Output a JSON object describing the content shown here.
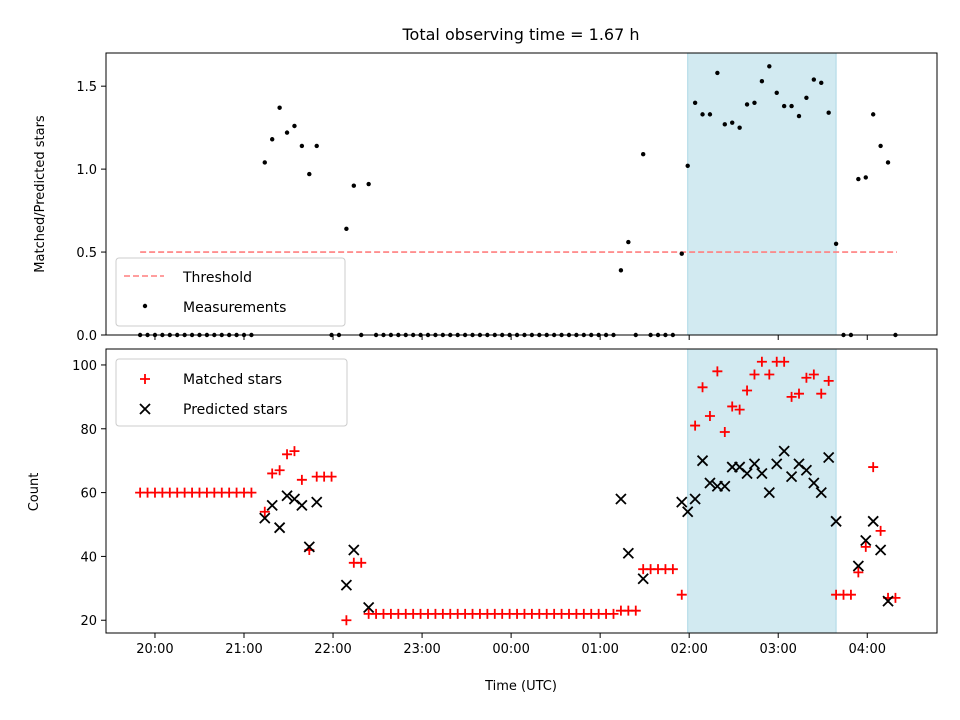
{
  "figure": {
    "title": "Total observing time = 1.67 h"
  },
  "chart_data": [
    {
      "type": "scatter",
      "panel": "top",
      "ylabel": "Matched/Predicted stars",
      "xlabel": "",
      "x_unit": "UTC time",
      "ylim": [
        0,
        1.7
      ],
      "yticks": [
        0.0,
        0.5,
        1.0,
        1.5
      ],
      "ytick_labels": [
        "0.0",
        "0.5",
        "1.0",
        "1.5"
      ],
      "xticks": [
        "20:00",
        "21:00",
        "22:00",
        "23:00",
        "00:00",
        "01:00",
        "02:00",
        "03:00",
        "04:00"
      ],
      "shaded_interval": [
        "01:59",
        "03:39"
      ],
      "shade_color": "#add8e6",
      "threshold": {
        "name": "Threshold",
        "y": 0.5,
        "x_start": "19:50",
        "x_end": "04:20",
        "color": "#ff7f7f",
        "style": "dashed"
      },
      "series": [
        {
          "name": "Measurements",
          "marker": "dot",
          "color": "#000000",
          "points": [
            [
              "19:50",
              0
            ],
            [
              "19:55",
              0
            ],
            [
              "20:00",
              0
            ],
            [
              "20:05",
              0
            ],
            [
              "20:10",
              0
            ],
            [
              "20:15",
              0
            ],
            [
              "20:20",
              0
            ],
            [
              "20:25",
              0
            ],
            [
              "20:30",
              0
            ],
            [
              "20:35",
              0
            ],
            [
              "20:40",
              0
            ],
            [
              "20:45",
              0
            ],
            [
              "20:50",
              0
            ],
            [
              "20:55",
              0
            ],
            [
              "21:00",
              0
            ],
            [
              "21:05",
              0
            ],
            [
              "21:14",
              1.04
            ],
            [
              "21:19",
              1.18
            ],
            [
              "21:24",
              1.37
            ],
            [
              "21:29",
              1.22
            ],
            [
              "21:34",
              1.26
            ],
            [
              "21:39",
              1.14
            ],
            [
              "21:44",
              0.97
            ],
            [
              "21:49",
              1.14
            ],
            [
              "21:59",
              0
            ],
            [
              "22:04",
              0
            ],
            [
              "22:09",
              0.64
            ],
            [
              "22:14",
              0.9
            ],
            [
              "22:19",
              0
            ],
            [
              "22:24",
              0.91
            ],
            [
              "22:29",
              0
            ],
            [
              "22:34",
              0
            ],
            [
              "22:39",
              0
            ],
            [
              "22:44",
              0
            ],
            [
              "22:49",
              0
            ],
            [
              "22:54",
              0
            ],
            [
              "22:59",
              0
            ],
            [
              "23:04",
              0
            ],
            [
              "23:09",
              0
            ],
            [
              "23:14",
              0
            ],
            [
              "23:19",
              0
            ],
            [
              "23:24",
              0
            ],
            [
              "23:29",
              0
            ],
            [
              "23:34",
              0
            ],
            [
              "23:39",
              0
            ],
            [
              "23:44",
              0
            ],
            [
              "23:49",
              0
            ],
            [
              "23:54",
              0
            ],
            [
              "23:59",
              0
            ],
            [
              "00:04",
              0
            ],
            [
              "00:09",
              0
            ],
            [
              "00:14",
              0
            ],
            [
              "00:19",
              0
            ],
            [
              "00:24",
              0
            ],
            [
              "00:29",
              0
            ],
            [
              "00:34",
              0
            ],
            [
              "00:39",
              0
            ],
            [
              "00:44",
              0
            ],
            [
              "00:49",
              0
            ],
            [
              "00:54",
              0
            ],
            [
              "00:59",
              0
            ],
            [
              "01:04",
              0
            ],
            [
              "01:09",
              0
            ],
            [
              "01:14",
              0.39
            ],
            [
              "01:19",
              0.56
            ],
            [
              "01:24",
              0
            ],
            [
              "01:29",
              1.09
            ],
            [
              "01:34",
              0
            ],
            [
              "01:39",
              0
            ],
            [
              "01:44",
              0
            ],
            [
              "01:49",
              0
            ],
            [
              "01:55",
              0.49
            ],
            [
              "01:59",
              1.02
            ],
            [
              "02:04",
              1.4
            ],
            [
              "02:09",
              1.33
            ],
            [
              "02:14",
              1.33
            ],
            [
              "02:19",
              1.58
            ],
            [
              "02:24",
              1.27
            ],
            [
              "02:29",
              1.28
            ],
            [
              "02:34",
              1.25
            ],
            [
              "02:39",
              1.39
            ],
            [
              "02:44",
              1.4
            ],
            [
              "02:49",
              1.53
            ],
            [
              "02:54",
              1.62
            ],
            [
              "02:59",
              1.46
            ],
            [
              "03:04",
              1.38
            ],
            [
              "03:09",
              1.38
            ],
            [
              "03:14",
              1.32
            ],
            [
              "03:19",
              1.43
            ],
            [
              "03:24",
              1.54
            ],
            [
              "03:29",
              1.52
            ],
            [
              "03:34",
              1.34
            ],
            [
              "03:39",
              0.55
            ],
            [
              "03:44",
              0
            ],
            [
              "03:49",
              0
            ],
            [
              "03:54",
              0.94
            ],
            [
              "03:59",
              0.95
            ],
            [
              "04:04",
              1.33
            ],
            [
              "04:09",
              1.14
            ],
            [
              "04:14",
              1.04
            ],
            [
              "04:19",
              0
            ]
          ]
        }
      ],
      "legend": {
        "placement": "lower-left",
        "entries": [
          "Threshold",
          "Measurements"
        ]
      }
    },
    {
      "type": "scatter",
      "panel": "bottom",
      "ylabel": "Count",
      "xlabel": "Time (UTC)",
      "ylim": [
        16,
        105
      ],
      "yticks": [
        20,
        40,
        60,
        80,
        100
      ],
      "ytick_labels": [
        "20",
        "40",
        "60",
        "80",
        "100"
      ],
      "xticks": [
        "20:00",
        "21:00",
        "22:00",
        "23:00",
        "00:00",
        "01:00",
        "02:00",
        "03:00",
        "04:00"
      ],
      "shaded_interval": [
        "01:59",
        "03:39"
      ],
      "shade_color": "#add8e6",
      "series": [
        {
          "name": "Matched stars",
          "marker": "plus",
          "color": "#ff0000",
          "points": [
            [
              "19:50",
              60
            ],
            [
              "19:55",
              60
            ],
            [
              "20:00",
              60
            ],
            [
              "20:05",
              60
            ],
            [
              "20:10",
              60
            ],
            [
              "20:15",
              60
            ],
            [
              "20:20",
              60
            ],
            [
              "20:25",
              60
            ],
            [
              "20:30",
              60
            ],
            [
              "20:35",
              60
            ],
            [
              "20:40",
              60
            ],
            [
              "20:45",
              60
            ],
            [
              "20:50",
              60
            ],
            [
              "20:55",
              60
            ],
            [
              "21:00",
              60
            ],
            [
              "21:05",
              60
            ],
            [
              "21:14",
              54
            ],
            [
              "21:19",
              66
            ],
            [
              "21:24",
              67
            ],
            [
              "21:29",
              72
            ],
            [
              "21:34",
              73
            ],
            [
              "21:39",
              64
            ],
            [
              "21:44",
              42
            ],
            [
              "21:49",
              65
            ],
            [
              "21:54",
              65
            ],
            [
              "21:59",
              65
            ],
            [
              "22:09",
              20
            ],
            [
              "22:14",
              38
            ],
            [
              "22:19",
              38
            ],
            [
              "22:24",
              22
            ],
            [
              "22:29",
              22
            ],
            [
              "22:34",
              22
            ],
            [
              "22:39",
              22
            ],
            [
              "22:44",
              22
            ],
            [
              "22:49",
              22
            ],
            [
              "22:54",
              22
            ],
            [
              "22:59",
              22
            ],
            [
              "23:04",
              22
            ],
            [
              "23:09",
              22
            ],
            [
              "23:14",
              22
            ],
            [
              "23:19",
              22
            ],
            [
              "23:24",
              22
            ],
            [
              "23:29",
              22
            ],
            [
              "23:34",
              22
            ],
            [
              "23:39",
              22
            ],
            [
              "23:44",
              22
            ],
            [
              "23:49",
              22
            ],
            [
              "23:54",
              22
            ],
            [
              "23:59",
              22
            ],
            [
              "00:04",
              22
            ],
            [
              "00:09",
              22
            ],
            [
              "00:14",
              22
            ],
            [
              "00:19",
              22
            ],
            [
              "00:24",
              22
            ],
            [
              "00:29",
              22
            ],
            [
              "00:34",
              22
            ],
            [
              "00:39",
              22
            ],
            [
              "00:44",
              22
            ],
            [
              "00:49",
              22
            ],
            [
              "00:54",
              22
            ],
            [
              "00:59",
              22
            ],
            [
              "01:04",
              22
            ],
            [
              "01:09",
              22
            ],
            [
              "01:14",
              23
            ],
            [
              "01:19",
              23
            ],
            [
              "01:24",
              23
            ],
            [
              "01:29",
              36
            ],
            [
              "01:34",
              36
            ],
            [
              "01:39",
              36
            ],
            [
              "01:44",
              36
            ],
            [
              "01:49",
              36
            ],
            [
              "01:55",
              28
            ],
            [
              "02:04",
              81
            ],
            [
              "02:09",
              93
            ],
            [
              "02:14",
              84
            ],
            [
              "02:19",
              98
            ],
            [
              "02:24",
              79
            ],
            [
              "02:29",
              87
            ],
            [
              "02:34",
              86
            ],
            [
              "02:39",
              92
            ],
            [
              "02:44",
              97
            ],
            [
              "02:49",
              101
            ],
            [
              "02:54",
              97
            ],
            [
              "02:59",
              101
            ],
            [
              "03:04",
              101
            ],
            [
              "03:09",
              90
            ],
            [
              "03:14",
              91
            ],
            [
              "03:19",
              96
            ],
            [
              "03:24",
              97
            ],
            [
              "03:29",
              91
            ],
            [
              "03:34",
              95
            ],
            [
              "03:39",
              28
            ],
            [
              "03:44",
              28
            ],
            [
              "03:49",
              28
            ],
            [
              "03:54",
              35
            ],
            [
              "03:59",
              43
            ],
            [
              "04:04",
              68
            ],
            [
              "04:09",
              48
            ],
            [
              "04:14",
              27
            ],
            [
              "04:19",
              27
            ]
          ]
        },
        {
          "name": "Predicted stars",
          "marker": "x",
          "color": "#000000",
          "points": [
            [
              "21:14",
              52
            ],
            [
              "21:19",
              56
            ],
            [
              "21:24",
              49
            ],
            [
              "21:29",
              59
            ],
            [
              "21:34",
              58
            ],
            [
              "21:39",
              56
            ],
            [
              "21:44",
              43
            ],
            [
              "21:49",
              57
            ],
            [
              "22:09",
              31
            ],
            [
              "22:14",
              42
            ],
            [
              "22:24",
              24
            ],
            [
              "01:14",
              58
            ],
            [
              "01:19",
              41
            ],
            [
              "01:29",
              33
            ],
            [
              "01:55",
              57
            ],
            [
              "01:59",
              54
            ],
            [
              "02:04",
              58
            ],
            [
              "02:09",
              70
            ],
            [
              "02:14",
              63
            ],
            [
              "02:19",
              62
            ],
            [
              "02:24",
              62
            ],
            [
              "02:29",
              68
            ],
            [
              "02:34",
              68
            ],
            [
              "02:39",
              66
            ],
            [
              "02:44",
              69
            ],
            [
              "02:49",
              66
            ],
            [
              "02:54",
              60
            ],
            [
              "02:59",
              69
            ],
            [
              "03:04",
              73
            ],
            [
              "03:09",
              65
            ],
            [
              "03:14",
              69
            ],
            [
              "03:19",
              67
            ],
            [
              "03:24",
              63
            ],
            [
              "03:29",
              60
            ],
            [
              "03:34",
              71
            ],
            [
              "03:39",
              51
            ],
            [
              "03:54",
              37
            ],
            [
              "03:59",
              45
            ],
            [
              "04:04",
              51
            ],
            [
              "04:09",
              42
            ],
            [
              "04:14",
              26
            ]
          ]
        }
      ],
      "legend": {
        "placement": "upper-left",
        "entries": [
          "Matched stars",
          "Predicted stars"
        ]
      }
    }
  ]
}
